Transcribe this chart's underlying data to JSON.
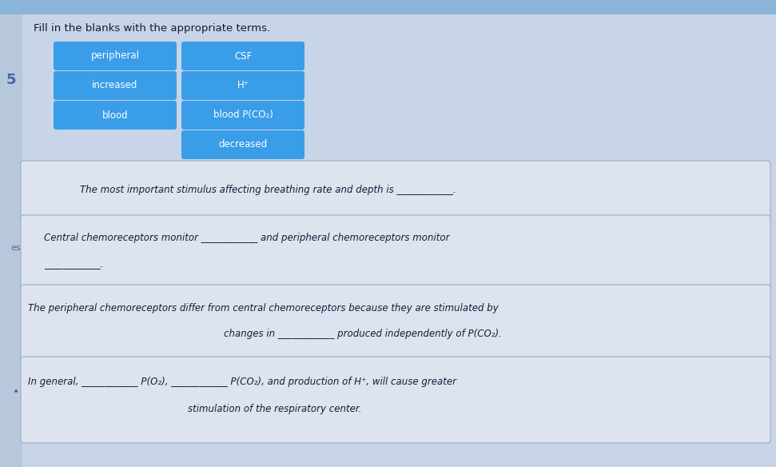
{
  "title": "Fill in the blanks with the appropriate terms.",
  "title_fontsize": 9.5,
  "bg_color": "#c8d4e8",
  "top_bar_color": "#5b9bd5",
  "button_color": "#3a9de8",
  "button_text_color": "#ffffff",
  "button_fontsize": 8.5,
  "left_buttons": [
    "peripheral",
    "increased",
    "blood"
  ],
  "right_buttons": [
    "CSF",
    "H⁺",
    "blood P(CO₂)",
    "decreased"
  ],
  "box_bg": "#dde3ef",
  "box_border": "#a0aac0",
  "question_fontsize": 8.5,
  "question_text_color": "#1a1a3a",
  "left_panel_color": "#c0cce0",
  "left_panel_border": "#a0aac0"
}
